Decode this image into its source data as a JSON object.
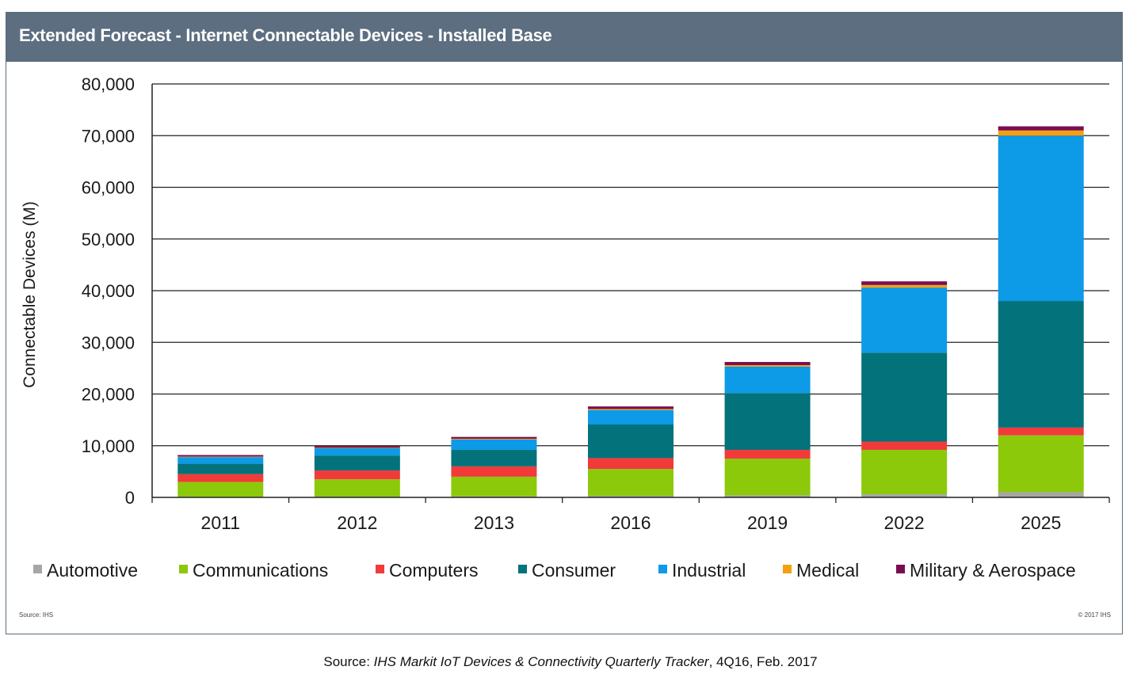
{
  "header": {
    "title": "Extended Forecast - Internet Connectable Devices - Installed Base"
  },
  "notes": {
    "source_small": "Source: IHS",
    "copyright_small": "© 2017 IHS"
  },
  "footer": {
    "prefix": "Source: ",
    "publication": "IHS Markit IoT Devices & Connectivity Quarterly Tracker",
    "suffix": ", 4Q16, Feb. 2017"
  },
  "chart_data": {
    "type": "bar",
    "stacked": true,
    "title": "Extended Forecast - Internet Connectable Devices - Installed Base",
    "xlabel": "",
    "ylabel": "Connectable Devices (M)",
    "ylim": [
      0,
      80000
    ],
    "yticks": [
      0,
      10000,
      20000,
      30000,
      40000,
      50000,
      60000,
      70000,
      80000
    ],
    "ytick_labels": [
      "0",
      "10,000",
      "20,000",
      "30,000",
      "40,000",
      "50,000",
      "60,000",
      "70,000",
      "80,000"
    ],
    "grid": true,
    "legend_position": "bottom",
    "categories": [
      "2011",
      "2012",
      "2013",
      "2016",
      "2019",
      "2022",
      "2025"
    ],
    "series": [
      {
        "name": "Automotive",
        "color": "#a6a6a6",
        "values": [
          100,
          150,
          200,
          300,
          400,
          600,
          1000
        ]
      },
      {
        "name": "Communications",
        "color": "#8cc90a",
        "values": [
          2900,
          3350,
          3800,
          5200,
          7100,
          8600,
          11000
        ]
      },
      {
        "name": "Computers",
        "color": "#f23a3a",
        "values": [
          1500,
          1700,
          2000,
          2100,
          1700,
          1600,
          1500
        ]
      },
      {
        "name": "Consumer",
        "color": "#03727a",
        "values": [
          2000,
          2900,
          3200,
          6500,
          11000,
          17200,
          24500
        ]
      },
      {
        "name": "Industrial",
        "color": "#0d9ae6",
        "values": [
          1300,
          1400,
          2000,
          2800,
          5100,
          12600,
          32000
        ]
      },
      {
        "name": "Medical",
        "color": "#f5a00f",
        "values": [
          100,
          100,
          150,
          200,
          300,
          500,
          1000
        ]
      },
      {
        "name": "Military & Aerospace",
        "color": "#7a0d52",
        "values": [
          300,
          300,
          350,
          500,
          600,
          700,
          800
        ]
      }
    ]
  }
}
